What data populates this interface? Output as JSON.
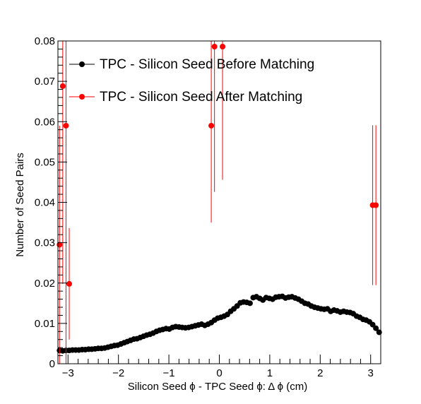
{
  "chart_data": {
    "type": "scatter",
    "title": "",
    "xlabel": "Silicon Seed  ϕ - TPC Seed  ϕ: Δ ϕ (cm)",
    "ylabel": "Number of Seed Pairs",
    "xlim": [
      -3.2,
      3.2
    ],
    "ylim": [
      0,
      0.08
    ],
    "x_ticks": [
      -3,
      -2,
      -1,
      0,
      1,
      2,
      3
    ],
    "x_tick_labels": [
      "−3",
      "−2",
      "−1",
      "0",
      "1",
      "2",
      "3"
    ],
    "y_ticks": [
      0,
      0.01,
      0.02,
      0.03,
      0.04,
      0.05,
      0.06,
      0.07,
      0.08
    ],
    "y_tick_labels": [
      "0",
      "0.01",
      "0.02",
      "0.03",
      "0.04",
      "0.05",
      "0.06",
      "0.07",
      "0.08"
    ],
    "grid": false,
    "legend_position": "top-left",
    "series": [
      {
        "name": "TPC - Silicon Seed Before Matching",
        "color": "#000000",
        "x": [
          -3.168,
          -3.104,
          -3.04,
          -2.976,
          -2.912,
          -2.848,
          -2.784,
          -2.72,
          -2.656,
          -2.592,
          -2.528,
          -2.464,
          -2.4,
          -2.336,
          -2.272,
          -2.208,
          -2.144,
          -2.08,
          -2.016,
          -1.952,
          -1.888,
          -1.824,
          -1.76,
          -1.696,
          -1.632,
          -1.568,
          -1.504,
          -1.44,
          -1.376,
          -1.312,
          -1.248,
          -1.184,
          -1.12,
          -1.056,
          -0.992,
          -0.928,
          -0.864,
          -0.8,
          -0.736,
          -0.672,
          -0.608,
          -0.544,
          -0.48,
          -0.416,
          -0.352,
          -0.288,
          -0.224,
          -0.16,
          -0.096,
          -0.032,
          0.032,
          0.096,
          0.16,
          0.224,
          0.288,
          0.352,
          0.416,
          0.48,
          0.544,
          0.608,
          0.672,
          0.736,
          0.8,
          0.864,
          0.928,
          0.992,
          1.056,
          1.12,
          1.184,
          1.248,
          1.312,
          1.376,
          1.44,
          1.504,
          1.568,
          1.632,
          1.696,
          1.76,
          1.824,
          1.888,
          1.952,
          2.016,
          2.08,
          2.144,
          2.208,
          2.272,
          2.336,
          2.4,
          2.464,
          2.528,
          2.592,
          2.656,
          2.72,
          2.784,
          2.848,
          2.912,
          2.976,
          3.04,
          3.104,
          3.168
        ],
        "values": [
          0.0033,
          0.0032,
          0.0033,
          0.0033,
          0.0034,
          0.0034,
          0.0034,
          0.0035,
          0.0035,
          0.0036,
          0.0036,
          0.0037,
          0.0038,
          0.0038,
          0.0039,
          0.0041,
          0.0043,
          0.0045,
          0.0046,
          0.0049,
          0.0052,
          0.0055,
          0.0058,
          0.0061,
          0.0062,
          0.0065,
          0.0068,
          0.0071,
          0.0073,
          0.0076,
          0.008,
          0.0083,
          0.0085,
          0.0087,
          0.0086,
          0.009,
          0.0092,
          0.0091,
          0.009,
          0.0089,
          0.009,
          0.0092,
          0.0094,
          0.0096,
          0.0098,
          0.0095,
          0.0098,
          0.0102,
          0.0108,
          0.0113,
          0.0115,
          0.0118,
          0.0122,
          0.013,
          0.0136,
          0.0143,
          0.0151,
          0.0153,
          0.0152,
          0.015,
          0.0164,
          0.0166,
          0.0162,
          0.0158,
          0.0164,
          0.0162,
          0.016,
          0.0165,
          0.0166,
          0.0167,
          0.0163,
          0.0165,
          0.0166,
          0.0163,
          0.016,
          0.0155,
          0.015,
          0.0148,
          0.0143,
          0.014,
          0.0138,
          0.0136,
          0.0135,
          0.0136,
          0.013,
          0.0133,
          0.0131,
          0.0128,
          0.013,
          0.0128,
          0.0127,
          0.0124,
          0.0118,
          0.0115,
          0.011,
          0.0108,
          0.0104,
          0.0097,
          0.0088,
          0.0078
        ]
      },
      {
        "name": "TPC - Silicon Seed After Matching",
        "color": "#ff0000",
        "x": [
          -3.168,
          -3.104,
          -3.04,
          -2.976,
          -0.16,
          -0.096,
          0.064,
          3.04,
          3.104
        ],
        "values": [
          0.0295,
          0.0688,
          0.059,
          0.0198,
          0.059,
          0.0786,
          0.0786,
          0.0393,
          0.0393
        ],
        "errors": [
          0.0295,
          0.049,
          0.059,
          0.0138,
          0.024,
          0.036,
          0.033,
          0.0198,
          0.0198
        ]
      }
    ]
  }
}
